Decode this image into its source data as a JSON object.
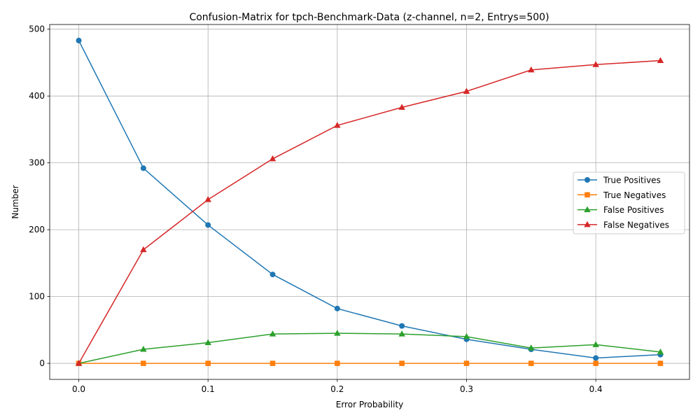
{
  "chart_data": {
    "type": "line",
    "title": "Confusion-Matrix for tpch-Benchmark-Data (z-channel, n=2, Entrys=500)",
    "xlabel": "Error Probability",
    "ylabel": "Number",
    "x": [
      0.0,
      0.05,
      0.1,
      0.15,
      0.2,
      0.25,
      0.3,
      0.35,
      0.4,
      0.45
    ],
    "xlim": [
      -0.0225,
      0.4725
    ],
    "ylim": [
      -24,
      507
    ],
    "xticks": [
      0.0,
      0.1,
      0.2,
      0.3,
      0.4
    ],
    "xtick_labels": [
      "0.0",
      "0.1",
      "0.2",
      "0.3",
      "0.4"
    ],
    "yticks": [
      0,
      100,
      200,
      300,
      400,
      500
    ],
    "ytick_labels": [
      "0",
      "100",
      "200",
      "300",
      "400",
      "500"
    ],
    "grid": true,
    "legend_position": "center-right",
    "series": [
      {
        "name": "True Positives",
        "color": "#1f77b4",
        "marker": "circle",
        "values": [
          483,
          292,
          207,
          133,
          82,
          56,
          36,
          21,
          8,
          13
        ]
      },
      {
        "name": "True Negatives",
        "color": "#ff7f0e",
        "marker": "square",
        "values": [
          0,
          0,
          0,
          0,
          0,
          0,
          0,
          0,
          0,
          0
        ]
      },
      {
        "name": "False Positives",
        "color": "#2ca02c",
        "marker": "triangle",
        "values": [
          0,
          21,
          31,
          44,
          45,
          44,
          40,
          23,
          28,
          17
        ]
      },
      {
        "name": "False Negatives",
        "color": "#d62728",
        "marker": "triangle",
        "values": [
          0,
          170,
          245,
          306,
          356,
          383,
          407,
          439,
          447,
          453
        ]
      }
    ]
  }
}
